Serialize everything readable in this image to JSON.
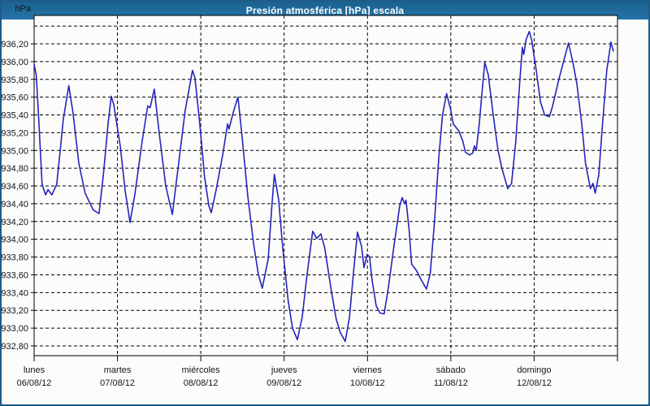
{
  "window": {
    "title": "Presión atmosférica [hPa] escala"
  },
  "colors": {
    "title_bar": "#2473a8",
    "outer_border": "#1e5b86",
    "background": "#fcfdfb",
    "grid": "#000000",
    "axis": "#000000",
    "line": "#2424bd",
    "label_text": "#14141e"
  },
  "chart_data": {
    "type": "line",
    "title": "Presión atmosférica [hPa] escala",
    "xlabel": "",
    "ylabel": "hPa",
    "legend": "none",
    "grid": "dashed",
    "y_axis": {
      "unit_label": "hPa",
      "range": [
        932.69,
        936.52
      ],
      "tick_step": 0.2,
      "ticks": [
        [
          936.4,
          ""
        ],
        [
          936.2,
          "936,20"
        ],
        [
          936.0,
          "936,00"
        ],
        [
          935.8,
          "935,80"
        ],
        [
          935.6,
          "935,60"
        ],
        [
          935.4,
          "935,40"
        ],
        [
          935.2,
          "935,20"
        ],
        [
          935.0,
          "935,00"
        ],
        [
          934.8,
          "934,80"
        ],
        [
          934.6,
          "934,60"
        ],
        [
          934.4,
          "934,40"
        ],
        [
          934.2,
          "934,20"
        ],
        [
          934.0,
          "934,00"
        ],
        [
          933.8,
          "933,80"
        ],
        [
          933.6,
          "933,60"
        ],
        [
          933.4,
          "933,40"
        ],
        [
          933.2,
          "933,20"
        ],
        [
          933.0,
          "933,00"
        ],
        [
          932.8,
          "932,80"
        ]
      ]
    },
    "x_axis": {
      "hours_total": 168,
      "hours_per_day": 24,
      "days": [
        {
          "name": "lunes",
          "date": "06/08/12"
        },
        {
          "name": "martes",
          "date": "07/08/12"
        },
        {
          "name": "miércoles",
          "date": "08/08/12"
        },
        {
          "name": "jueves",
          "date": "09/08/12"
        },
        {
          "name": "viernes",
          "date": "10/08/12"
        },
        {
          "name": "sábado",
          "date": "11/08/12"
        },
        {
          "name": "domingo",
          "date": "12/08/12"
        }
      ]
    },
    "series": [
      {
        "name": "Presión atmosférica",
        "color": "#2424bd",
        "points": [
          [
            0,
            935.97
          ],
          [
            0.6,
            935.85
          ],
          [
            1.2,
            935.45
          ],
          [
            2.3,
            934.62
          ],
          [
            3.3,
            934.5
          ],
          [
            4,
            934.56
          ],
          [
            5.1,
            934.5
          ],
          [
            6.5,
            934.62
          ],
          [
            7.5,
            935.0
          ],
          [
            8.4,
            935.35
          ],
          [
            10,
            935.73
          ],
          [
            11.2,
            935.42
          ],
          [
            12.9,
            934.85
          ],
          [
            14.7,
            934.52
          ],
          [
            17,
            934.33
          ],
          [
            18.7,
            934.29
          ],
          [
            20,
            934.75
          ],
          [
            21.3,
            935.3
          ],
          [
            22.2,
            935.61
          ],
          [
            22.9,
            935.52
          ],
          [
            24.8,
            935.05
          ],
          [
            26.2,
            934.55
          ],
          [
            27.6,
            934.19
          ],
          [
            29,
            934.5
          ],
          [
            31.1,
            935.1
          ],
          [
            32.7,
            935.5
          ],
          [
            33.4,
            935.48
          ],
          [
            34.6,
            935.69
          ],
          [
            36,
            935.2
          ],
          [
            37.9,
            934.6
          ],
          [
            39.8,
            934.28
          ],
          [
            41.6,
            934.85
          ],
          [
            43.5,
            935.45
          ],
          [
            45.6,
            935.9
          ],
          [
            46.3,
            935.82
          ],
          [
            47.7,
            935.3
          ],
          [
            49.1,
            934.7
          ],
          [
            50.3,
            934.38
          ],
          [
            51,
            934.3
          ],
          [
            52.4,
            934.55
          ],
          [
            54.3,
            934.95
          ],
          [
            55.7,
            935.3
          ],
          [
            56.1,
            935.24
          ],
          [
            57.5,
            935.45
          ],
          [
            58.7,
            935.6
          ],
          [
            59.9,
            935.15
          ],
          [
            61.5,
            934.5
          ],
          [
            63.2,
            933.95
          ],
          [
            64.6,
            933.6
          ],
          [
            65.7,
            933.45
          ],
          [
            67.4,
            933.78
          ],
          [
            68.5,
            934.4
          ],
          [
            69.2,
            934.73
          ],
          [
            70.4,
            934.45
          ],
          [
            71.6,
            933.9
          ],
          [
            73.2,
            933.3
          ],
          [
            74.4,
            933.0
          ],
          [
            75.8,
            932.87
          ],
          [
            77.2,
            933.12
          ],
          [
            78.6,
            933.6
          ],
          [
            80.2,
            934.09
          ],
          [
            81.4,
            934.01
          ],
          [
            82.6,
            934.06
          ],
          [
            83.7,
            933.9
          ],
          [
            85.6,
            933.42
          ],
          [
            87,
            933.1
          ],
          [
            88.2,
            932.95
          ],
          [
            89.6,
            932.85
          ],
          [
            90.8,
            933.12
          ],
          [
            91.9,
            933.6
          ],
          [
            93.1,
            934.08
          ],
          [
            94.3,
            933.92
          ],
          [
            95,
            933.68
          ],
          [
            95.9,
            933.83
          ],
          [
            96.6,
            933.8
          ],
          [
            97.3,
            933.55
          ],
          [
            98.5,
            933.25
          ],
          [
            99.6,
            933.17
          ],
          [
            100.8,
            933.16
          ],
          [
            102,
            933.45
          ],
          [
            103.6,
            933.92
          ],
          [
            105.3,
            934.38
          ],
          [
            106,
            934.47
          ],
          [
            106.7,
            934.4
          ],
          [
            107.1,
            934.44
          ],
          [
            108,
            934.1
          ],
          [
            108.7,
            933.72
          ],
          [
            110.1,
            933.65
          ],
          [
            111.8,
            933.52
          ],
          [
            113,
            933.44
          ],
          [
            114.1,
            933.62
          ],
          [
            115.3,
            934.2
          ],
          [
            116.5,
            934.9
          ],
          [
            117.6,
            935.4
          ],
          [
            118.8,
            935.64
          ],
          [
            120,
            935.45
          ],
          [
            120.7,
            935.3
          ],
          [
            122.3,
            935.22
          ],
          [
            123.5,
            935.1
          ],
          [
            124.2,
            934.98
          ],
          [
            125.4,
            934.95
          ],
          [
            126.3,
            934.97
          ],
          [
            126.8,
            935.05
          ],
          [
            127.3,
            935.0
          ],
          [
            128.2,
            935.3
          ],
          [
            129.1,
            935.7
          ],
          [
            129.8,
            935.99
          ],
          [
            130.8,
            935.85
          ],
          [
            132.2,
            935.4
          ],
          [
            133.6,
            935.0
          ],
          [
            134.7,
            934.8
          ],
          [
            136.4,
            934.57
          ],
          [
            137.5,
            934.63
          ],
          [
            138.7,
            935.1
          ],
          [
            139.9,
            935.8
          ],
          [
            140.6,
            936.16
          ],
          [
            141,
            936.08
          ],
          [
            141.7,
            936.25
          ],
          [
            142.6,
            936.34
          ],
          [
            143.3,
            936.24
          ],
          [
            144.6,
            935.9
          ],
          [
            145.8,
            935.55
          ],
          [
            147,
            935.4
          ],
          [
            148.4,
            935.38
          ],
          [
            149.3,
            935.5
          ],
          [
            151.1,
            935.8
          ],
          [
            152.8,
            936.05
          ],
          [
            153.9,
            936.21
          ],
          [
            155.1,
            936.0
          ],
          [
            156.3,
            935.75
          ],
          [
            157.7,
            935.3
          ],
          [
            158.8,
            934.85
          ],
          [
            160.2,
            934.57
          ],
          [
            160.9,
            934.63
          ],
          [
            161.6,
            934.52
          ],
          [
            162.6,
            934.72
          ],
          [
            163.7,
            935.3
          ],
          [
            164.9,
            935.9
          ],
          [
            166.1,
            936.22
          ],
          [
            166.8,
            936.12
          ]
        ]
      }
    ]
  }
}
